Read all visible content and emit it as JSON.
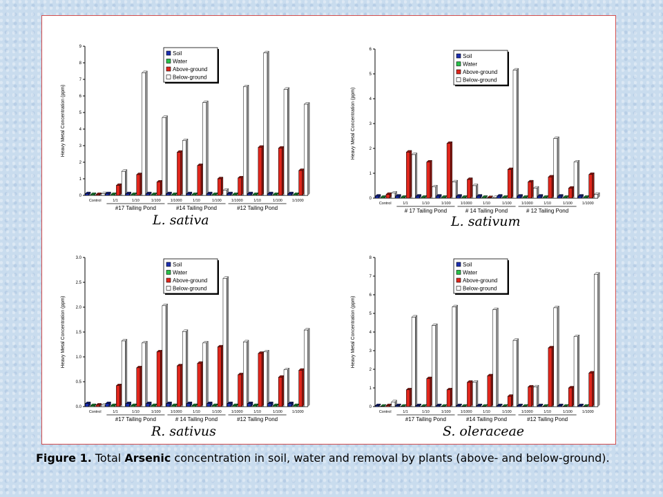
{
  "caption": {
    "label": "Figure 1.",
    "text_before": " Total ",
    "element": "Arsenic",
    "text_after": " concentration in soil, water and removal by plants (above- and below-ground)."
  },
  "colors": {
    "soil": "#1c2fb0",
    "water": "#29c24a",
    "above_ground": "#e0261c",
    "below_ground": "#ffffff",
    "panel_border": "#d24c4c"
  },
  "chart_data": [
    {
      "type": "bar",
      "species_label": "L. sativa",
      "ylabel": "Heavy Metal Concentration (ppm)",
      "ylim": [
        0,
        9
      ],
      "yticks": [
        "0",
        "1",
        "2",
        "3",
        "4",
        "5",
        "6",
        "7",
        "8",
        "9"
      ],
      "legend": [
        "Soil",
        "Water",
        "Above-ground",
        "Below-ground"
      ],
      "legend_position": "top-left",
      "categories": [
        "Control",
        "1/1",
        "1/10",
        "1/100",
        "1/1000",
        "1/10",
        "1/100",
        "1/1000",
        "1/10",
        "1/100",
        "1/1000"
      ],
      "groups": [
        "#17 Tailing Pond",
        "#14 Tailing Pond",
        "#12 Tailing Pond"
      ],
      "series": [
        {
          "name": "Soil",
          "values": [
            0.1,
            0.1,
            0.1,
            0.1,
            0.1,
            0.1,
            0.1,
            0.1,
            0.1,
            0.1,
            0.1
          ]
        },
        {
          "name": "Water",
          "values": [
            0.05,
            0.05,
            0.05,
            0.05,
            0.05,
            0.05,
            0.05,
            0.05,
            0.05,
            0.05,
            0.05
          ]
        },
        {
          "name": "Above-ground",
          "values": [
            0.05,
            0.6,
            1.25,
            0.8,
            2.6,
            1.8,
            1.0,
            1.05,
            2.9,
            2.85,
            1.5
          ]
        },
        {
          "name": "Below-ground",
          "values": [
            0.1,
            1.45,
            7.4,
            4.7,
            3.3,
            5.6,
            0.3,
            6.55,
            8.6,
            6.4,
            5.5
          ]
        }
      ]
    },
    {
      "type": "bar",
      "species_label": "L. sativum",
      "ylabel": "Heavy Metal Concentration (ppm)",
      "ylim": [
        0,
        6
      ],
      "yticks": [
        "0",
        "1",
        "2",
        "3",
        "4",
        "5",
        "6"
      ],
      "legend": [
        "Soil",
        "Water",
        "Above-ground",
        "Below-ground"
      ],
      "legend_position": "top-left",
      "categories": [
        "Control",
        "1/1",
        "1/10",
        "1/100",
        "1/1000",
        "1/10",
        "1/100",
        "1/1000",
        "1/10",
        "1/100",
        "1/1000"
      ],
      "groups": [
        "# 17 Tailing Pond",
        "# 14 Tailing Pond",
        "# 12 Tailing Pond"
      ],
      "series": [
        {
          "name": "Soil",
          "values": [
            0.08,
            0.08,
            0.08,
            0.08,
            0.08,
            0.08,
            0.08,
            0.08,
            0.08,
            0.08,
            0.08
          ]
        },
        {
          "name": "Water",
          "values": [
            0.03,
            0.03,
            0.03,
            0.03,
            0.03,
            0.03,
            0.03,
            0.03,
            0.03,
            0.03,
            0.03
          ]
        },
        {
          "name": "Above-ground",
          "values": [
            0.15,
            1.85,
            1.45,
            2.2,
            0.75,
            0.02,
            1.15,
            0.65,
            0.85,
            0.4,
            0.95
          ]
        },
        {
          "name": "Below-ground",
          "values": [
            0.2,
            1.75,
            0.45,
            0.65,
            0.5,
            0.02,
            5.15,
            0.4,
            2.4,
            1.45,
            0.15
          ]
        }
      ]
    },
    {
      "type": "bar",
      "species_label": "R. sativus",
      "ylabel": "Heavy Metal Concentration (ppm)",
      "ylim": [
        0,
        3.0
      ],
      "yticks": [
        "0.0",
        "0.5",
        "1.0",
        "1.5",
        "2.0",
        "2.5",
        "3.0"
      ],
      "legend": [
        "Soil",
        "Water",
        "Above-ground",
        "Below-ground"
      ],
      "legend_position": "top-left",
      "categories": [
        "Control",
        "1/1",
        "1/10",
        "1/100",
        "1/1000",
        "1/10",
        "1/100",
        "1/1000",
        "1/10",
        "1/100",
        "1/1000"
      ],
      "groups": [
        "#17 Tailing Pond",
        "# 14 Tailing Pond",
        "#12 Tailing Pond"
      ],
      "series": [
        {
          "name": "Soil",
          "values": [
            0.06,
            0.06,
            0.06,
            0.06,
            0.06,
            0.06,
            0.06,
            0.06,
            0.06,
            0.06,
            0.06
          ]
        },
        {
          "name": "Water",
          "values": [
            0.02,
            0.02,
            0.02,
            0.02,
            0.02,
            0.02,
            0.02,
            0.02,
            0.02,
            0.02,
            0.02
          ]
        },
        {
          "name": "Above-ground",
          "values": [
            0.03,
            0.42,
            0.78,
            1.1,
            0.82,
            0.87,
            1.2,
            0.64,
            1.07,
            0.59,
            0.73
          ]
        },
        {
          "name": "Below-ground",
          "values": [
            0.03,
            1.32,
            1.28,
            2.03,
            1.51,
            1.28,
            2.58,
            1.3,
            1.1,
            0.74,
            1.54
          ]
        }
      ]
    },
    {
      "type": "bar",
      "species_label": "S. oleraceae",
      "ylabel": "Heavy Metal Concentration (ppm)",
      "ylim": [
        0,
        8
      ],
      "yticks": [
        "0",
        "1",
        "2",
        "3",
        "4",
        "5",
        "6",
        "7",
        "8"
      ],
      "legend": [
        "Soil",
        "Water",
        "Above-ground",
        "Below-ground"
      ],
      "legend_position": "top-left",
      "categories": [
        "Control",
        "1/1",
        "1/10",
        "1/100",
        "1/1000",
        "1/10",
        "1/100",
        "1/1000",
        "1/10",
        "1/100",
        "1/1000"
      ],
      "groups": [
        "#17 Tailing Pond",
        "#14 Tailing Pond",
        "#12 Tailing Pond"
      ],
      "series": [
        {
          "name": "Soil",
          "values": [
            0.05,
            0.05,
            0.05,
            0.05,
            0.05,
            0.05,
            0.05,
            0.05,
            0.05,
            0.05,
            0.05
          ]
        },
        {
          "name": "Water",
          "values": [
            0.02,
            0.02,
            0.02,
            0.02,
            0.02,
            0.02,
            0.02,
            0.02,
            0.02,
            0.02,
            0.02
          ]
        },
        {
          "name": "Above-ground",
          "values": [
            0.05,
            0.9,
            1.5,
            0.9,
            1.3,
            1.65,
            0.55,
            1.05,
            3.15,
            1.0,
            1.8
          ]
        },
        {
          "name": "Below-ground",
          "values": [
            0.25,
            4.8,
            4.35,
            5.35,
            1.3,
            5.2,
            3.55,
            1.05,
            5.3,
            3.75,
            7.1
          ]
        }
      ]
    }
  ]
}
